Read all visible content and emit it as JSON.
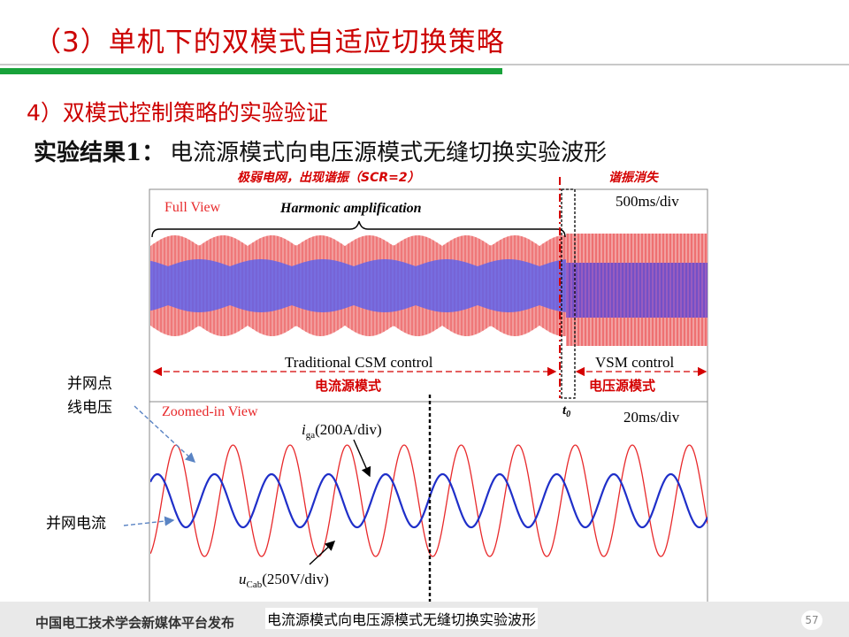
{
  "slide": {
    "title": "（3）单机下的双模式自适应切换策略",
    "subtitle": "4）双模式控制策略的实验验证",
    "result_label": "实验结果1：",
    "result_text": "电流源模式向电压源模式无缝切换实验波形",
    "caption": "电流源模式向电压源模式无缝切换实验波形",
    "footer_org": "中国电工技术学会新媒体平台发布",
    "page_number": "57"
  },
  "figure": {
    "top_annotation_left": "极弱电网，出现谐振（SCR=2）",
    "top_annotation_right": "谐振消失",
    "full_view_label": "Full View",
    "harmonic_label": "Harmonic amplification",
    "timebase_top": "500ms/div",
    "csm_label": "Traditional CSM control",
    "vsm_label": "VSM control",
    "current_mode_label": "电流源模式",
    "voltage_mode_label": "电压源模式",
    "t0_label": "t",
    "t0_subscript": "0",
    "zoomed_label": "Zoomed-in View",
    "timebase_bottom": "20ms/div",
    "iga_symbol": "i",
    "iga_subscript": "ga",
    "iga_scale": "(200A/div)",
    "ucab_symbol": "u",
    "ucab_subscript": "Cab",
    "ucab_scale": "(250V/div)",
    "callout_voltage_line1": "并网点",
    "callout_voltage_line2": "线电压",
    "callout_current": "并网电流",
    "colors": {
      "voltage": "#e8292b",
      "current": "#1f2fc9",
      "annotation": "#d40000"
    }
  }
}
